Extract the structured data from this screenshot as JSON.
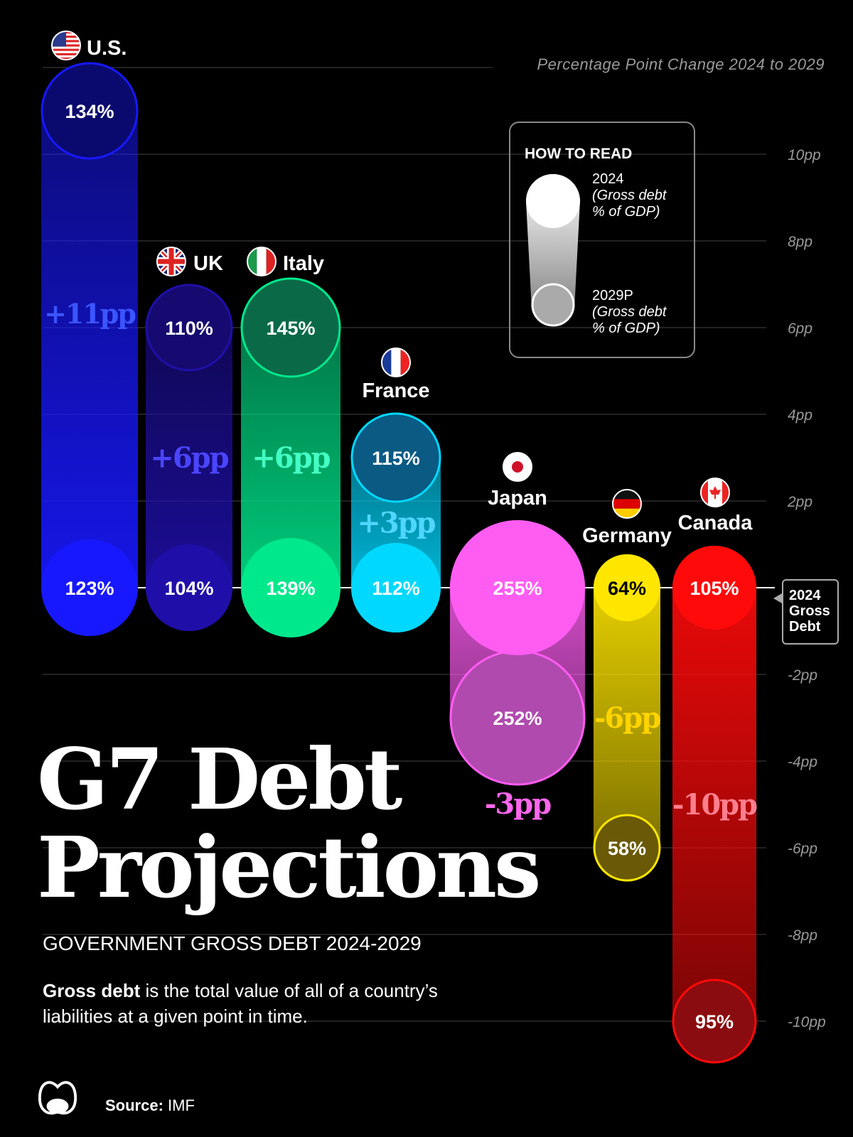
{
  "header": {
    "axis_title": "Percentage Point Change 2024 to 2029"
  },
  "how_to_read": {
    "title": "HOW TO READ",
    "top_label": "2024",
    "top_sub1": "(Gross debt",
    "top_sub2": "% of GDP)",
    "bottom_label": "2029P",
    "bottom_sub1": "(Gross debt",
    "bottom_sub2": "% of GDP)"
  },
  "baseline_label": {
    "line1": "2024",
    "line2": "Gross",
    "line3": "Debt"
  },
  "title": {
    "line1": "G7 Debt",
    "line2": "Projections"
  },
  "subtitle": "GOVERNMENT GROSS DEBT 2024-2029",
  "description": {
    "bold": "Gross debt",
    "rest": " is the total value of all of a country’s liabilities at a given point in time."
  },
  "source": {
    "label": "Source:",
    "value": " IMF"
  },
  "chart_data": {
    "type": "bar",
    "title": "G7 Debt Projections",
    "ylabel": "Percentage Point Change 2024 to 2029",
    "ylim": [
      -10,
      12
    ],
    "yticks": [
      10,
      8,
      6,
      4,
      2,
      -2,
      -4,
      -6,
      -8,
      -10
    ],
    "ytick_labels": [
      "10pp",
      "8pp",
      "6pp",
      "4pp",
      "2pp",
      "-2pp",
      "-4pp",
      "-6pp",
      "-8pp",
      "-10pp"
    ],
    "grid": true,
    "countries": [
      {
        "name": "U.S.",
        "debt_2024": "123%",
        "debt_2029": "134%",
        "change": 11,
        "change_label": "+11pp",
        "color": "#1818ff",
        "dark": "#0a0a6e",
        "label_color": "#3b55ff",
        "flag": "us"
      },
      {
        "name": "UK",
        "debt_2024": "104%",
        "debt_2029": "110%",
        "change": 6,
        "change_label": "+6pp",
        "color": "#1f0fa8",
        "dark": "#160a70",
        "label_color": "#4a45ff",
        "flag": "uk"
      },
      {
        "name": "Italy",
        "debt_2024": "139%",
        "debt_2029": "145%",
        "change": 6,
        "change_label": "+6pp",
        "color": "#00e88c",
        "dark": "#0a6a48",
        "label_color": "#45ffc4",
        "flag": "it"
      },
      {
        "name": "France",
        "debt_2024": "112%",
        "debt_2029": "115%",
        "change": 3,
        "change_label": "+3pp",
        "color": "#00d8ff",
        "dark": "#0a5a84",
        "label_color": "#4fd6ff",
        "flag": "fr"
      },
      {
        "name": "Japan",
        "debt_2024": "255%",
        "debt_2029": "252%",
        "change": -3,
        "change_label": "-3pp",
        "color": "#ff5cf2",
        "dark": "#b04aae",
        "label_color": "#ff66ee",
        "flag": "jp",
        "label_position": "below"
      },
      {
        "name": "Germany",
        "debt_2024": "64%",
        "debt_2029": "58%",
        "change": -6,
        "change_label": "-6pp",
        "color": "#ffe600",
        "dark": "#6a5a08",
        "label_color": "#ffd400",
        "flag": "de",
        "text_2024": "#000000"
      },
      {
        "name": "Canada",
        "debt_2024": "105%",
        "debt_2029": "95%",
        "change": -10,
        "change_label": "-10pp",
        "color": "#ff0a0a",
        "dark": "#8a0c10",
        "label_color": "#ff7f8e",
        "flag": "ca"
      }
    ]
  }
}
